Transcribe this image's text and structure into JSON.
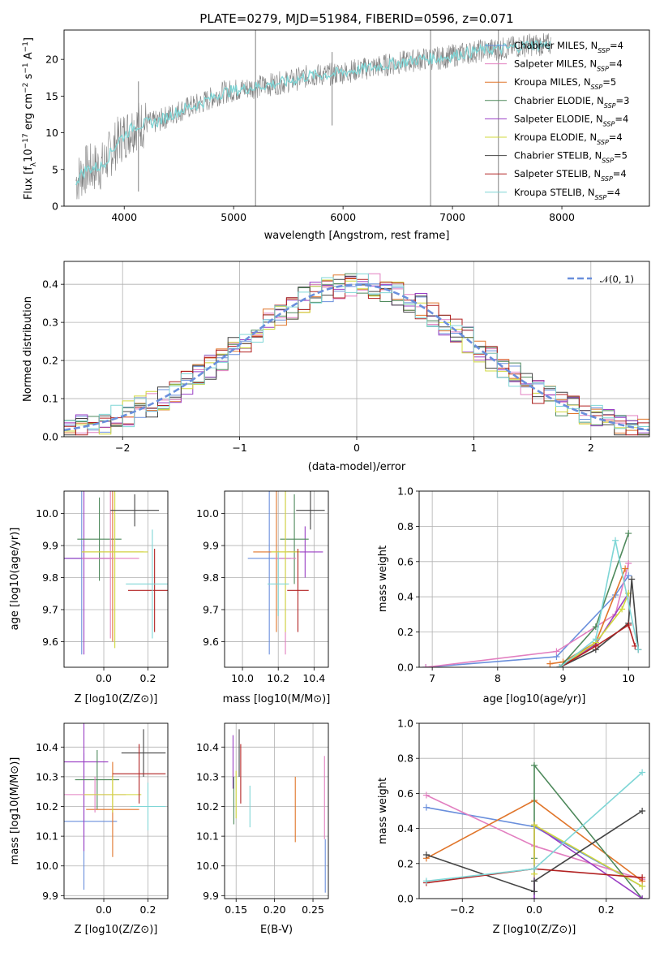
{
  "colors": {
    "blue": "#6a8fdc",
    "orange": "#e0752a",
    "green": "#4f8a5c",
    "red": "#b22222",
    "purple": "#9a3fc4",
    "brown": "#a0522d",
    "pink": "#e27fc0",
    "gray": "#808080",
    "olive": "#d0d83c",
    "cyan": "#7fd6d6",
    "dark": "#444444",
    "grid": "#b0b0b0"
  },
  "chart_data": [
    {
      "id": "spectrum",
      "type": "line",
      "title": "PLATE=0279, MJD=51984, FIBERID=0596, z=0.071",
      "xlabel": "wavelength [Angstrom, rest frame]",
      "ylabel": "Flux [f_λ10^-17 erg cm^-2 s^-1 A^-1]",
      "xlim": [
        3450,
        8800
      ],
      "ylim": [
        0,
        24
      ],
      "xticks": [
        "4000",
        "5000",
        "6000",
        "7000",
        "8000"
      ],
      "yticks": [
        "0",
        "5",
        "10",
        "15",
        "20"
      ],
      "grid": false,
      "legend_position": "right",
      "legend": [
        {
          "name": "Chabrier MILES, N_SSP=4",
          "color": "blue"
        },
        {
          "name": "Salpeter MILES, N_SSP=4",
          "color": "pink"
        },
        {
          "name": "Kroupa MILES, N_SSP=5",
          "color": "orange"
        },
        {
          "name": "Chabrier ELODIE, N_SSP=3",
          "color": "green"
        },
        {
          "name": "Salpeter ELODIE, N_SSP=4",
          "color": "purple"
        },
        {
          "name": "Kroupa ELODIE, N_SSP=4",
          "color": "olive"
        },
        {
          "name": "Chabrier STELIB, N_SSP=5",
          "color": "dark"
        },
        {
          "name": "Salpeter STELIB, N_SSP=4",
          "color": "red"
        },
        {
          "name": "Kroupa STELIB, N_SSP=4",
          "color": "cyan"
        }
      ],
      "spectrum_trend": [
        [
          3560,
          3.5
        ],
        [
          3650,
          5.0
        ],
        [
          3800,
          5.5
        ],
        [
          3950,
          9.0
        ],
        [
          4100,
          11.0
        ],
        [
          4300,
          11.5
        ],
        [
          4500,
          13.0
        ],
        [
          4700,
          14.0
        ],
        [
          4900,
          15.5
        ],
        [
          5100,
          16.0
        ],
        [
          5300,
          16.5
        ],
        [
          5500,
          17.0
        ],
        [
          5700,
          17.8
        ],
        [
          5900,
          18.0
        ],
        [
          6100,
          18.5
        ],
        [
          6300,
          19.0
        ],
        [
          6500,
          19.5
        ],
        [
          6700,
          20.0
        ],
        [
          6900,
          20.2
        ],
        [
          7100,
          20.8
        ],
        [
          7300,
          21.3
        ],
        [
          7500,
          21.5
        ],
        [
          7700,
          22.0
        ],
        [
          7900,
          22.0
        ]
      ],
      "spikes": [
        [
          5200,
          0,
          24
        ],
        [
          6800,
          0,
          24
        ],
        [
          7420,
          0,
          24
        ],
        [
          5900,
          11,
          21
        ],
        [
          4130,
          2,
          17
        ]
      ]
    },
    {
      "id": "residuals",
      "type": "line",
      "xlabel": "(data-model)/error",
      "ylabel": "Normed distribution",
      "xlim": [
        -2.5,
        2.5
      ],
      "ylim": [
        0,
        0.46
      ],
      "xticks": [
        "−2",
        "−1",
        "0",
        "1",
        "2"
      ],
      "yticks": [
        "0.0",
        "0.1",
        "0.2",
        "0.3",
        "0.4"
      ],
      "grid": true,
      "legend": [
        {
          "name": "𝒩(0, 1)",
          "color": "blue",
          "style": "dashed"
        }
      ],
      "legend_position": "top-right"
    },
    {
      "id": "age_vs_Z",
      "type": "scatter",
      "xlabel": "Z [log10(Z/Z⊙)]",
      "ylabel": "age [log10(age/yr)]",
      "xlim": [
        -0.18,
        0.29
      ],
      "ylim": [
        9.52,
        10.07
      ],
      "xticks": [
        "0.0",
        "0.2"
      ],
      "yticks": [
        "9.6",
        "9.7",
        "9.8",
        "9.9",
        "10.0"
      ],
      "grid": true,
      "points": [
        {
          "color": "blue",
          "x": -0.1,
          "y": 9.86,
          "xerr": 0.13,
          "yerr": 0.3
        },
        {
          "color": "purple",
          "x": -0.09,
          "y": 9.86,
          "xerr": 0.13,
          "yerr": 0.3
        },
        {
          "color": "green",
          "x": -0.02,
          "y": 9.92,
          "xerr": 0.1,
          "yerr": 0.13
        },
        {
          "color": "orange",
          "x": 0.04,
          "y": 9.88,
          "xerr": 0.14,
          "yerr": 0.28
        },
        {
          "color": "pink",
          "x": 0.03,
          "y": 9.86,
          "xerr": 0.13,
          "yerr": 0.25
        },
        {
          "color": "olive",
          "x": 0.05,
          "y": 9.88,
          "xerr": 0.15,
          "yerr": 0.3
        },
        {
          "color": "dark",
          "x": 0.14,
          "y": 10.01,
          "xerr": 0.11,
          "yerr": 0.05
        },
        {
          "color": "red",
          "x": 0.23,
          "y": 9.76,
          "xerr": 0.12,
          "yerr": 0.13
        },
        {
          "color": "cyan",
          "x": 0.22,
          "y": 9.78,
          "xerr": 0.12,
          "yerr": 0.17
        }
      ]
    },
    {
      "id": "age_vs_mass",
      "type": "scatter",
      "xlabel": "mass [log10(M/M⊙)]",
      "ylabel": "",
      "xlim": [
        9.9,
        10.48
      ],
      "ylim": [
        9.52,
        10.07
      ],
      "xticks": [
        "10.0",
        "10.2",
        "10.4"
      ],
      "yticks": [
        "9.6",
        "9.7",
        "9.8",
        "9.9",
        "10.0"
      ],
      "grid": true,
      "points": [
        {
          "color": "blue",
          "x": 10.15,
          "y": 9.86,
          "xerr": 0.12,
          "yerr": 0.3
        },
        {
          "color": "purple",
          "x": 10.35,
          "y": 9.88,
          "xerr": 0.1,
          "yerr": 0.08
        },
        {
          "color": "green",
          "x": 10.29,
          "y": 9.92,
          "xerr": 0.08,
          "yerr": 0.14
        },
        {
          "color": "orange",
          "x": 10.19,
          "y": 9.88,
          "xerr": 0.13,
          "yerr": 0.25
        },
        {
          "color": "pink",
          "x": 10.24,
          "y": 9.86,
          "xerr": 0.06,
          "yerr": 0.3
        },
        {
          "color": "olive",
          "x": 10.24,
          "y": 9.88,
          "xerr": 0.08,
          "yerr": 0.25
        },
        {
          "color": "dark",
          "x": 10.38,
          "y": 10.01,
          "xerr": 0.08,
          "yerr": 0.06
        },
        {
          "color": "red",
          "x": 10.31,
          "y": 9.76,
          "xerr": 0.06,
          "yerr": 0.13
        },
        {
          "color": "cyan",
          "x": 10.2,
          "y": 9.78,
          "xerr": 0.06,
          "yerr": 0.1
        }
      ]
    },
    {
      "id": "weight_vs_age",
      "type": "line",
      "xlabel": "age [log10(age/yr)]",
      "ylabel": "mass weight",
      "xlim": [
        6.8,
        10.32
      ],
      "ylim": [
        0,
        1.0
      ],
      "xticks": [
        "7",
        "8",
        "9",
        "10"
      ],
      "yticks": [
        "0.0",
        "0.2",
        "0.4",
        "0.6",
        "0.8",
        "1.0"
      ],
      "grid": true,
      "series": [
        {
          "color": "blue",
          "x": [
            6.9,
            8.9,
            9.8,
            10.0
          ],
          "y": [
            0.0,
            0.06,
            0.41,
            0.52
          ]
        },
        {
          "color": "pink",
          "x": [
            6.9,
            8.9,
            9.8,
            10.0
          ],
          "y": [
            0.0,
            0.09,
            0.3,
            0.59
          ]
        },
        {
          "color": "orange",
          "x": [
            8.8,
            9.0,
            9.5,
            9.95
          ],
          "y": [
            0.02,
            0.03,
            0.14,
            0.56
          ]
        },
        {
          "color": "green",
          "x": [
            8.95,
            9.5,
            10.0
          ],
          "y": [
            0.0,
            0.23,
            0.76
          ]
        },
        {
          "color": "purple",
          "x": [
            8.95,
            9.5,
            10.0
          ],
          "y": [
            0.0,
            0.13,
            0.42
          ]
        },
        {
          "color": "olive",
          "x": [
            8.95,
            9.5,
            9.9,
            10.0
          ],
          "y": [
            0.0,
            0.14,
            0.33,
            0.42
          ]
        },
        {
          "color": "dark",
          "x": [
            8.95,
            9.5,
            10.0,
            10.05,
            10.15
          ],
          "y": [
            0.0,
            0.1,
            0.25,
            0.5,
            0.1
          ]
        },
        {
          "color": "red",
          "x": [
            8.95,
            9.5,
            10.0,
            10.1
          ],
          "y": [
            0.0,
            0.12,
            0.24,
            0.12
          ]
        },
        {
          "color": "cyan",
          "x": [
            8.95,
            9.5,
            9.8,
            10.15
          ],
          "y": [
            0.0,
            0.16,
            0.72,
            0.1
          ]
        }
      ]
    },
    {
      "id": "mass_vs_Z",
      "type": "scatter",
      "xlabel": "Z [log10(Z/Z⊙)]",
      "ylabel": "mass [log10(M/M⊙)]",
      "xlim": [
        -0.18,
        0.29
      ],
      "ylim": [
        9.89,
        10.48
      ],
      "xticks": [
        "0.0",
        "0.2"
      ],
      "yticks": [
        "9.9",
        "10.0",
        "10.1",
        "10.2",
        "10.3",
        "10.4"
      ],
      "grid": true,
      "points": [
        {
          "color": "blue",
          "x": -0.09,
          "y": 10.15,
          "xerr": 0.15,
          "yerr": 0.23
        },
        {
          "color": "purple",
          "x": -0.09,
          "y": 10.35,
          "xerr": 0.11,
          "yerr": 0.3
        },
        {
          "color": "green",
          "x": -0.03,
          "y": 10.29,
          "xerr": 0.1,
          "yerr": 0.1
        },
        {
          "color": "orange",
          "x": 0.04,
          "y": 10.19,
          "xerr": 0.12,
          "yerr": 0.16
        },
        {
          "color": "pink",
          "x": -0.04,
          "y": 10.24,
          "xerr": 0.14,
          "yerr": 0.06
        },
        {
          "color": "olive",
          "x": 0.04,
          "y": 10.24,
          "xerr": 0.13,
          "yerr": 0.06
        },
        {
          "color": "dark",
          "x": 0.18,
          "y": 10.38,
          "xerr": 0.1,
          "yerr": 0.08
        },
        {
          "color": "red",
          "x": 0.16,
          "y": 10.31,
          "xerr": 0.12,
          "yerr": 0.1
        },
        {
          "color": "cyan",
          "x": 0.2,
          "y": 10.2,
          "xerr": 0.08,
          "yerr": 0.08
        }
      ]
    },
    {
      "id": "mass_vs_ebv",
      "type": "scatter",
      "xlabel": "E(B-V)",
      "ylabel": "",
      "xlim": [
        0.135,
        0.27
      ],
      "ylim": [
        9.89,
        10.48
      ],
      "xticks": [
        "0.15",
        "0.20",
        "0.25"
      ],
      "yticks": [
        "9.9",
        "10.0",
        "10.1",
        "10.2",
        "10.3",
        "10.4"
      ],
      "grid": true,
      "points": [
        {
          "color": "blue",
          "x": 0.266,
          "y": 10.0,
          "yerr": 0.09
        },
        {
          "color": "purple",
          "x": 0.146,
          "y": 10.35,
          "yerr": 0.09
        },
        {
          "color": "green",
          "x": 0.147,
          "y": 10.22,
          "yerr": 0.08
        },
        {
          "color": "orange",
          "x": 0.227,
          "y": 10.19,
          "yerr": 0.11
        },
        {
          "color": "pink",
          "x": 0.265,
          "y": 10.23,
          "yerr": 0.14
        },
        {
          "color": "olive",
          "x": 0.15,
          "y": 10.24,
          "yerr": 0.08
        },
        {
          "color": "dark",
          "x": 0.154,
          "y": 10.38,
          "yerr": 0.08
        },
        {
          "color": "red",
          "x": 0.156,
          "y": 10.31,
          "yerr": 0.1
        },
        {
          "color": "cyan",
          "x": 0.168,
          "y": 10.2,
          "yerr": 0.07
        }
      ]
    },
    {
      "id": "weight_vs_Z",
      "type": "line",
      "xlabel": "Z [log10(Z/Z⊙)]",
      "ylabel": "mass weight",
      "xlim": [
        -0.32,
        0.32
      ],
      "ylim": [
        0,
        1.0
      ],
      "xticks": [
        "−0.2",
        "0.0",
        "0.2"
      ],
      "yticks": [
        "0.0",
        "0.2",
        "0.4",
        "0.6",
        "0.8",
        "1.0"
      ],
      "grid": true,
      "series": [
        {
          "color": "blue",
          "x": [
            -0.3,
            0.0,
            0.3
          ],
          "y": [
            0.52,
            0.41,
            0.07
          ]
        },
        {
          "color": "pink",
          "x": [
            -0.3,
            0.0,
            0.3
          ],
          "y": [
            0.59,
            0.3,
            0.11
          ]
        },
        {
          "color": "orange",
          "x": [
            -0.3,
            0.0,
            0.3
          ],
          "y": [
            0.23,
            0.56,
            0.1
          ]
        },
        {
          "color": "green",
          "x": [
            0.0,
            0.0,
            0.3
          ],
          "y": [
            0.23,
            0.76,
            0.0
          ]
        },
        {
          "color": "purple",
          "x": [
            0.0,
            0.0,
            0.3
          ],
          "y": [
            0.0,
            0.42,
            0.0
          ]
        },
        {
          "color": "olive",
          "x": [
            0.0,
            0.0,
            0.3
          ],
          "y": [
            0.14,
            0.42,
            0.07
          ]
        },
        {
          "color": "dark",
          "x": [
            -0.3,
            0.0,
            0.0,
            0.3
          ],
          "y": [
            0.25,
            0.04,
            0.1,
            0.5
          ]
        },
        {
          "color": "red",
          "x": [
            -0.3,
            0.0,
            0.3
          ],
          "y": [
            0.09,
            0.17,
            0.12
          ]
        },
        {
          "color": "cyan",
          "x": [
            -0.3,
            0.0,
            0.3
          ],
          "y": [
            0.1,
            0.17,
            0.72
          ]
        }
      ]
    }
  ]
}
